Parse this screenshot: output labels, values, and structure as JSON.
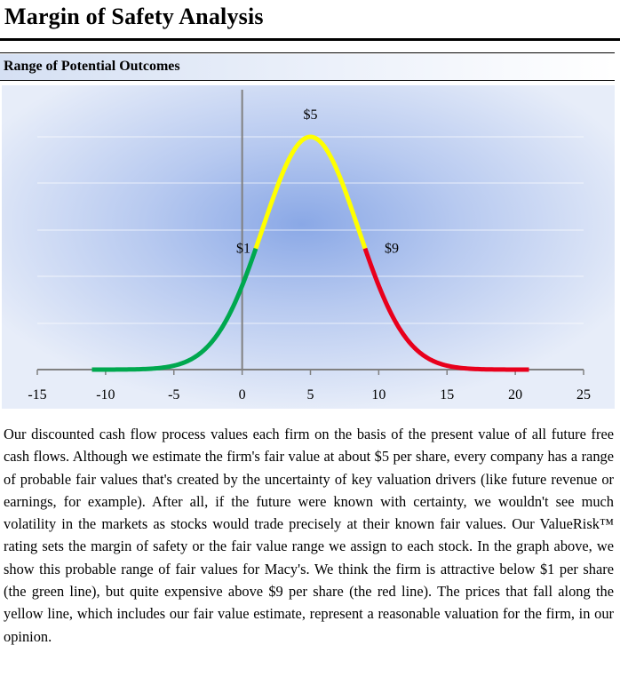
{
  "page": {
    "title": "Margin of Safety Analysis",
    "section_title": "Range of Potential Outcomes",
    "body_text": "Our discounted cash flow process values each firm on the basis of the present value of all future free cash flows. Although we estimate the firm's fair value at about $5 per share, every company has a range of probable fair values that's created by the uncertainty of key valuation drivers (like future revenue or earnings, for example). After all, if the future were known with certainty, we wouldn't see much volatility in the markets as stocks would trade precisely at their known fair values. Our ValueRisk™ rating sets the margin of safety or the fair value range we assign to each stock. In the graph above, we show this probable range of fair values for Macy's. We think the firm is attractive below $1 per share (the green line), but quite expensive above $9 per share (the red line). The prices that fall along the yellow line, which includes our fair value estimate, represent a reasonable valuation for the firm, in our opinion."
  },
  "chart_data": {
    "type": "line",
    "title": "",
    "xlabel": "",
    "ylabel": "",
    "xlim": [
      -15,
      25
    ],
    "x_ticks": [
      -15,
      -10,
      -5,
      0,
      5,
      10,
      15,
      20,
      25
    ],
    "x_tick_labels": [
      "-15",
      "-10",
      "-5",
      "0",
      "5",
      "10",
      "15",
      "20",
      "25"
    ],
    "grid": "horizontal",
    "legend": "none",
    "curve": {
      "shape": "normal",
      "mean": 5,
      "sd": 3.5,
      "x_start": -11,
      "x_end": 21
    },
    "series": [
      {
        "x_range": [
          -11,
          1
        ],
        "color": "#00a84f"
      },
      {
        "x_range": [
          1,
          9
        ],
        "color": "#ffff00"
      },
      {
        "x_range": [
          9,
          21
        ],
        "color": "#e8001c"
      }
    ],
    "annotations": [
      {
        "x": 1,
        "text": "$1"
      },
      {
        "x": 5,
        "text": "$5"
      },
      {
        "x": 9,
        "text": "$9"
      }
    ]
  }
}
